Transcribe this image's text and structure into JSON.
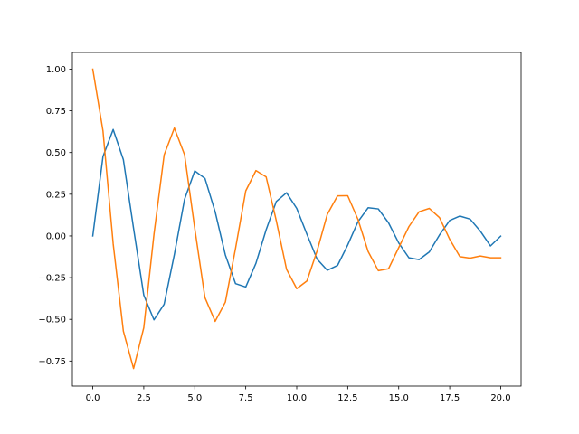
{
  "chart_data": {
    "type": "line",
    "title": "",
    "xlabel": "",
    "ylabel": "",
    "xlim": [
      -1.0,
      21.0
    ],
    "ylim": [
      -0.9,
      1.1
    ],
    "xticks": [
      0.0,
      2.5,
      5.0,
      7.5,
      10.0,
      12.5,
      15.0,
      17.5,
      20.0
    ],
    "xtick_labels": [
      "0.0",
      "2.5",
      "5.0",
      "7.5",
      "10.0",
      "12.5",
      "15.0",
      "17.5",
      "20.0"
    ],
    "yticks": [
      -0.75,
      -0.5,
      -0.25,
      0.0,
      0.25,
      0.5,
      0.75,
      1.0
    ],
    "ytick_labels": [
      "−0.75",
      "−0.50",
      "−0.25",
      "0.00",
      "0.25",
      "0.50",
      "0.75",
      "1.00"
    ],
    "grid": false,
    "legend": "none",
    "series": [
      {
        "color": "#1f77b4",
        "x": [
          0.0,
          0.5,
          1.0,
          1.5,
          2.0,
          2.5,
          3.0,
          3.5,
          4.0,
          4.5,
          5.0,
          5.5,
          6.0,
          6.5,
          7.0,
          7.5,
          8.0,
          8.5,
          9.0,
          9.5,
          10.0,
          10.5,
          11.0,
          11.5,
          12.0,
          12.5,
          13.0,
          13.5,
          14.0,
          14.5,
          15.0,
          15.5,
          16.0,
          16.5,
          17.0,
          17.5,
          18.0,
          18.5,
          19.0,
          19.5,
          20.0
        ],
        "y": [
          0.0,
          0.476,
          0.638,
          0.457,
          0.045,
          -0.355,
          -0.503,
          -0.409,
          -0.111,
          0.22,
          0.39,
          0.345,
          0.145,
          -0.114,
          -0.286,
          -0.306,
          -0.164,
          0.037,
          0.207,
          0.259,
          0.165,
          0.01,
          -0.139,
          -0.206,
          -0.177,
          -0.054,
          0.085,
          0.169,
          0.162,
          0.079,
          -0.042,
          -0.131,
          -0.142,
          -0.096,
          0.006,
          0.093,
          0.119,
          0.101,
          0.029,
          -0.06,
          -0.001
        ]
      },
      {
        "color": "#ff7f0e",
        "x": [
          0.0,
          0.5,
          1.0,
          1.5,
          2.0,
          2.5,
          3.0,
          3.5,
          4.0,
          4.5,
          5.0,
          5.5,
          6.0,
          6.5,
          7.0,
          7.5,
          8.0,
          8.5,
          9.0,
          9.5,
          10.0,
          10.5,
          11.0,
          11.5,
          12.0,
          12.5,
          13.0,
          13.5,
          14.0,
          14.5,
          15.0,
          15.5,
          16.0,
          16.5,
          17.0,
          17.5,
          18.0,
          18.5,
          19.0,
          19.5,
          20.0
        ],
        "y": [
          1.0,
          0.63,
          -0.047,
          -0.571,
          -0.795,
          -0.55,
          0.01,
          0.486,
          0.647,
          0.487,
          0.045,
          -0.37,
          -0.512,
          -0.397,
          -0.074,
          0.27,
          0.392,
          0.354,
          0.09,
          -0.2,
          -0.316,
          -0.27,
          -0.089,
          0.13,
          0.24,
          0.241,
          0.1,
          -0.093,
          -0.208,
          -0.197,
          -0.07,
          0.056,
          0.145,
          0.165,
          0.11,
          -0.02,
          -0.124,
          -0.133,
          -0.12,
          -0.131,
          -0.131
        ]
      }
    ]
  }
}
